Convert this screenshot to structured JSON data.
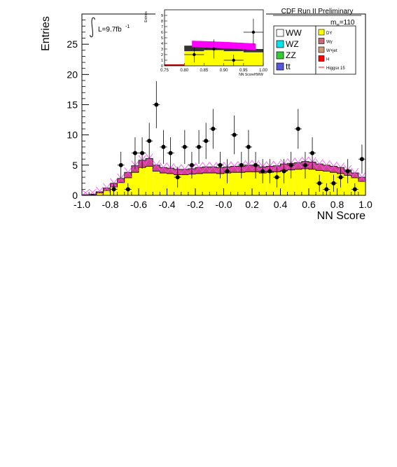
{
  "header": {
    "title": "CDF Run II Preliminary",
    "lumi_prefix": "L=9.7fb",
    "lumi_exp": "-1",
    "mass_label": "m",
    "mass_sub": "H",
    "mass_value": "=110"
  },
  "chart_data": {
    "type": "bar",
    "xlabel": "NN Score",
    "ylabel": "Entries",
    "xlim": [
      -1.0,
      1.0
    ],
    "ylim": [
      0,
      30
    ],
    "x_ticks": [
      "-1.0",
      "-0.8",
      "-0.6",
      "-0.4",
      "-0.2",
      "-0.0",
      "0.2",
      "0.4",
      "0.6",
      "0.8",
      "1.0"
    ],
    "y_ticks": [
      "0",
      "5",
      "10",
      "15",
      "20",
      "25"
    ],
    "bin_edges": [
      -1.0,
      -0.95,
      -0.9,
      -0.85,
      -0.8,
      -0.75,
      -0.7,
      -0.65,
      -0.6,
      -0.55,
      -0.5,
      -0.45,
      -0.4,
      -0.35,
      -0.3,
      -0.25,
      -0.2,
      -0.15,
      -0.1,
      -0.05,
      0.0,
      0.05,
      0.1,
      0.15,
      0.2,
      0.25,
      0.3,
      0.35,
      0.4,
      0.45,
      0.5,
      0.55,
      0.6,
      0.65,
      0.7,
      0.75,
      0.8,
      0.85,
      0.9,
      0.95,
      1.0
    ],
    "background_dy": [
      0.0,
      0.1,
      0.4,
      0.8,
      1.4,
      2.1,
      2.9,
      3.8,
      4.6,
      4.8,
      4.0,
      3.7,
      3.6,
      3.4,
      3.4,
      3.5,
      3.6,
      3.7,
      3.7,
      3.6,
      3.7,
      3.8,
      3.8,
      3.9,
      3.9,
      3.7,
      3.8,
      3.9,
      4.1,
      4.2,
      4.3,
      4.4,
      4.3,
      4.1,
      4.0,
      3.8,
      3.6,
      3.3,
      2.9,
      2.3
    ],
    "total_prediction": [
      0.1,
      0.2,
      0.6,
      1.2,
      2.0,
      2.8,
      3.8,
      4.9,
      5.8,
      6.1,
      5.0,
      4.6,
      4.5,
      4.3,
      4.3,
      4.4,
      4.6,
      4.7,
      4.7,
      4.6,
      4.7,
      4.8,
      4.8,
      5.0,
      5.0,
      4.7,
      4.8,
      4.9,
      5.2,
      5.3,
      5.4,
      5.6,
      5.5,
      5.2,
      5.0,
      4.8,
      4.6,
      4.2,
      3.7,
      3.0
    ],
    "uncertainty": 0.8,
    "data_x": [
      -0.775,
      -0.725,
      -0.675,
      -0.625,
      -0.575,
      -0.525,
      -0.475,
      -0.425,
      -0.375,
      -0.325,
      -0.275,
      -0.225,
      -0.175,
      -0.125,
      -0.075,
      -0.025,
      0.025,
      0.075,
      0.125,
      0.175,
      0.225,
      0.275,
      0.325,
      0.375,
      0.425,
      0.475,
      0.525,
      0.575,
      0.625,
      0.675,
      0.725,
      0.775,
      0.825,
      0.875,
      0.925,
      0.975
    ],
    "data_y": [
      1,
      5,
      1,
      7,
      7,
      9,
      15,
      8,
      7,
      3,
      8,
      5,
      8,
      9,
      11,
      5,
      4,
      10,
      5,
      8,
      5,
      4,
      4,
      3,
      4,
      5,
      11,
      5,
      7,
      2,
      1,
      2,
      3,
      4,
      1,
      6
    ],
    "data_err": [
      1.0,
      2.2,
      1.0,
      2.6,
      2.6,
      3.0,
      3.9,
      2.8,
      2.6,
      1.7,
      2.8,
      2.2,
      2.8,
      3.0,
      3.3,
      2.2,
      2.0,
      3.2,
      2.2,
      2.8,
      2.2,
      2.0,
      2.0,
      1.7,
      2.0,
      2.2,
      3.3,
      2.2,
      2.6,
      1.4,
      1.0,
      1.4,
      1.7,
      2.0,
      1.0,
      2.4
    ],
    "data_xerr": 0.025,
    "series": [
      {
        "name": "WW",
        "color": "#ffffff"
      },
      {
        "name": "WZ",
        "color": "#00e5ee"
      },
      {
        "name": "ZZ",
        "color": "#33cc33"
      },
      {
        "name": "tt",
        "color": "#5555dd"
      },
      {
        "name": "DY",
        "color": "#ffff00"
      },
      {
        "name": "Wγ",
        "color": "#cc6677"
      },
      {
        "name": "W+jet",
        "color": "#cc9977"
      },
      {
        "name": "H",
        "color": "#ff0000"
      },
      {
        "name": "Higgsx 15",
        "color": "#ff0000"
      }
    ],
    "legend_position": "top-right",
    "inset": {
      "xlabel": "NN ScoreHWW",
      "ylabel": "Entries",
      "xlim": [
        0.75,
        1.0
      ],
      "ylim": [
        0,
        10
      ],
      "x_ticks": [
        "0.75",
        "0.80",
        "0.85",
        "0.90",
        "0.95",
        "1.00"
      ],
      "y_ticks": [
        "0",
        "1",
        "2",
        "3",
        "4",
        "5",
        "6",
        "7",
        "8",
        "9"
      ],
      "bin_edges": [
        0.75,
        0.8,
        0.85,
        0.9,
        0.95,
        1.0
      ],
      "background_dy": [
        0.0,
        2.6,
        2.8,
        2.6,
        2.4
      ],
      "total_prediction": [
        0.2,
        3.6,
        3.9,
        3.6,
        3.0
      ],
      "band_center": [
        3.9,
        3.7,
        3.4
      ],
      "band_x": [
        0.82,
        0.9,
        0.98
      ],
      "band_halfwidth": 0.55,
      "data_x": [
        0.825,
        0.875,
        0.925,
        0.975
      ],
      "data_y": [
        2,
        3,
        1,
        6
      ],
      "data_err": [
        1.4,
        1.7,
        1.0,
        2.4
      ],
      "data_xerr": 0.025
    }
  }
}
